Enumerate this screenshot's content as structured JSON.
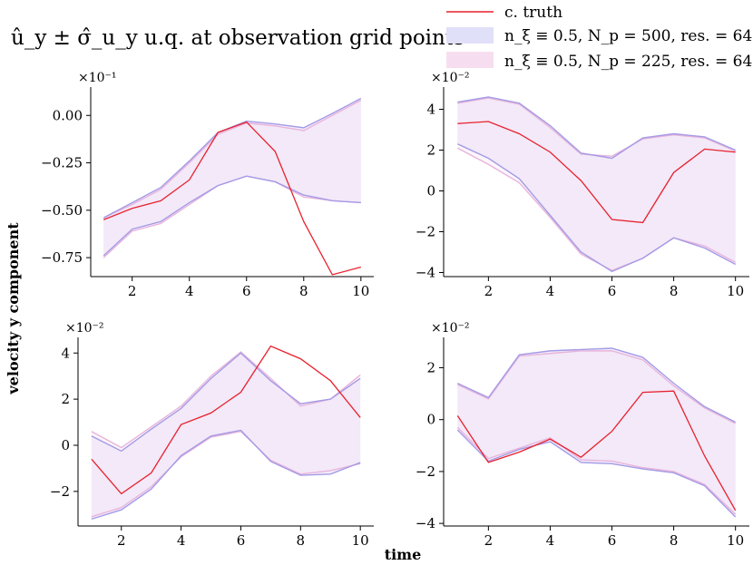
{
  "figure": {
    "title": "û_y ± σ̂_u_y u.q. at observation grid points",
    "ylabel": "velocity y component",
    "xlabel": "time"
  },
  "legend": [
    {
      "label": "c. truth",
      "kind": "line",
      "color": "#e8212e"
    },
    {
      "label": "n_ξ ≡ 0.5, N_p = 500, res. = 64",
      "kind": "patch",
      "color": "#e0e0f8"
    },
    {
      "label": "n_ξ ≡ 0.5, N_p = 225, res. = 64",
      "kind": "patch",
      "color": "#f6def0"
    }
  ],
  "colors": {
    "truth": "#e8212e",
    "band500_edge": "#a49be6",
    "band225_edge": "#e8b4dc",
    "band_fill": "#ece6fa",
    "band_fill2": "#f6e6f4"
  },
  "chart_data": [
    {
      "type": "line",
      "panel": "top-left",
      "x": [
        1,
        2,
        3,
        4,
        5,
        6,
        7,
        8,
        9,
        10
      ],
      "scale_label": "×10⁻¹",
      "ylim": [
        -0.85,
        0.14
      ],
      "yticks": [
        0.0,
        -0.25,
        -0.5,
        -0.75
      ],
      "ytick_labels": [
        "0.00",
        "−0.25",
        "−0.50",
        "−0.75"
      ],
      "xticks": [
        2,
        4,
        6,
        8,
        10
      ],
      "truth": [
        -0.55,
        -0.49,
        -0.45,
        -0.34,
        -0.09,
        -0.035,
        -0.19,
        -0.56,
        -0.84,
        -0.8
      ],
      "np500_upper": [
        -0.54,
        -0.46,
        -0.38,
        -0.24,
        -0.09,
        -0.03,
        -0.045,
        -0.065,
        0.01,
        0.09
      ],
      "np500_lower": [
        -0.74,
        -0.6,
        -0.56,
        -0.46,
        -0.37,
        -0.32,
        -0.35,
        -0.42,
        -0.45,
        -0.46
      ],
      "np225_upper": [
        -0.54,
        -0.47,
        -0.39,
        -0.25,
        -0.1,
        -0.04,
        -0.055,
        -0.08,
        0.0,
        0.08
      ],
      "np225_lower": [
        -0.75,
        -0.61,
        -0.57,
        -0.47,
        -0.37,
        -0.32,
        -0.35,
        -0.43,
        -0.45,
        -0.46
      ]
    },
    {
      "type": "line",
      "panel": "top-right",
      "x": [
        1,
        2,
        3,
        4,
        5,
        6,
        7,
        8,
        9,
        10
      ],
      "scale_label": "×10⁻²",
      "ylim": [
        -4.2,
        5.0
      ],
      "yticks": [
        4,
        2,
        0,
        -2,
        -4
      ],
      "ytick_labels": [
        "4",
        "2",
        "0",
        "−2",
        "−4"
      ],
      "xticks": [
        2,
        4,
        6,
        8,
        10
      ],
      "truth": [
        3.3,
        3.4,
        2.8,
        1.9,
        0.5,
        -1.4,
        -1.55,
        0.9,
        2.05,
        1.9
      ],
      "np500_upper": [
        4.35,
        4.6,
        4.3,
        3.2,
        1.85,
        1.6,
        2.6,
        2.8,
        2.65,
        2.0
      ],
      "np500_lower": [
        2.3,
        1.6,
        0.6,
        -1.2,
        -3.0,
        -3.95,
        -3.3,
        -2.3,
        -2.8,
        -3.6
      ],
      "np225_upper": [
        4.3,
        4.55,
        4.25,
        3.1,
        1.8,
        1.7,
        2.55,
        2.75,
        2.6,
        1.95
      ],
      "np225_lower": [
        2.1,
        1.3,
        0.4,
        -1.3,
        -3.1,
        -3.9,
        -3.3,
        -2.3,
        -2.7,
        -3.5
      ]
    },
    {
      "type": "line",
      "panel": "bottom-left",
      "x": [
        1,
        2,
        3,
        4,
        5,
        6,
        7,
        8,
        9,
        10
      ],
      "scale_label": "×10⁻²",
      "ylim": [
        -3.5,
        4.6
      ],
      "yticks": [
        4,
        2,
        0,
        -2
      ],
      "ytick_labels": [
        "4",
        "2",
        "0",
        "−2"
      ],
      "xticks": [
        2,
        4,
        6,
        8,
        10
      ],
      "truth": [
        -0.6,
        -2.1,
        -1.2,
        0.9,
        1.4,
        2.3,
        4.3,
        3.75,
        2.8,
        1.2
      ],
      "np500_upper": [
        0.4,
        -0.25,
        0.7,
        1.6,
        2.9,
        4.0,
        2.8,
        1.8,
        2.0,
        2.9
      ],
      "np500_lower": [
        -3.2,
        -2.8,
        -1.9,
        -0.45,
        0.4,
        0.65,
        -0.7,
        -1.3,
        -1.25,
        -0.75
      ],
      "np225_upper": [
        0.6,
        -0.1,
        0.8,
        1.7,
        3.0,
        4.05,
        2.9,
        1.7,
        2.0,
        3.05
      ],
      "np225_lower": [
        -3.1,
        -2.7,
        -1.8,
        -0.5,
        0.35,
        0.6,
        -0.65,
        -1.25,
        -1.1,
        -0.8
      ]
    },
    {
      "type": "line",
      "panel": "bottom-right",
      "x": [
        1,
        2,
        3,
        4,
        5,
        6,
        7,
        8,
        9,
        10
      ],
      "scale_label": "×10⁻²",
      "ylim": [
        -4.1,
        3.1
      ],
      "yticks": [
        2,
        0,
        -2,
        -4
      ],
      "ytick_labels": [
        "2",
        "0",
        "−2",
        "−4"
      ],
      "xticks": [
        2,
        4,
        6,
        8,
        10
      ],
      "truth": [
        0.15,
        -1.65,
        -1.25,
        -0.75,
        -1.45,
        -0.45,
        1.05,
        1.1,
        -1.4,
        -3.5
      ],
      "np500_upper": [
        1.4,
        0.85,
        2.5,
        2.65,
        2.7,
        2.75,
        2.4,
        1.4,
        0.5,
        -0.1
      ],
      "np500_lower": [
        -0.4,
        -1.6,
        -1.15,
        -0.85,
        -1.65,
        -1.7,
        -1.9,
        -2.05,
        -2.55,
        -3.75
      ],
      "np225_upper": [
        1.35,
        0.8,
        2.45,
        2.55,
        2.65,
        2.65,
        2.3,
        1.3,
        0.45,
        -0.15
      ],
      "np225_lower": [
        -0.3,
        -1.5,
        -1.1,
        -0.7,
        -1.55,
        -1.6,
        -1.85,
        -2.0,
        -2.5,
        -3.65
      ]
    }
  ]
}
